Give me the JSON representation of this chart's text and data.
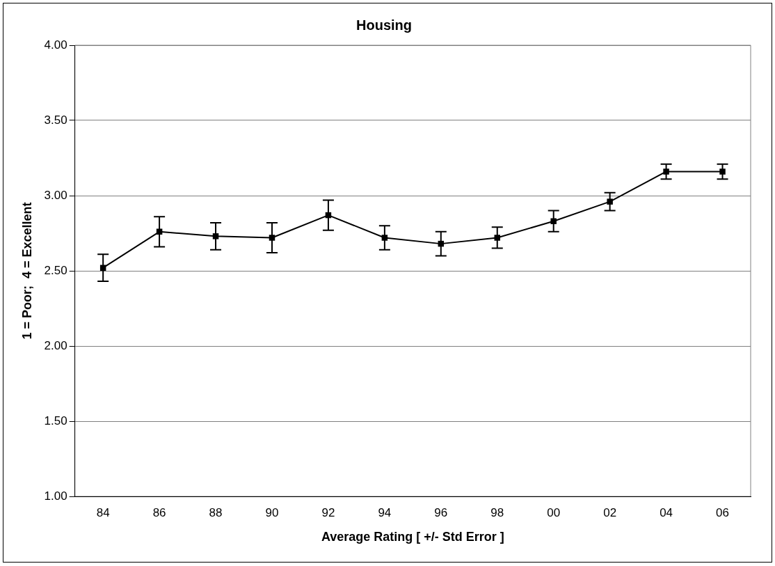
{
  "chart_data": {
    "type": "line",
    "title": "Housing",
    "xlabel": "Average Rating [ +/- Std Error ]",
    "ylabel": "1 = Poor;  4 = Excellent",
    "categories": [
      "84",
      "86",
      "88",
      "90",
      "92",
      "94",
      "96",
      "98",
      "00",
      "02",
      "04",
      "06"
    ],
    "series": [
      {
        "color": "#000000",
        "values": [
          2.52,
          2.76,
          2.73,
          2.72,
          2.87,
          2.72,
          2.68,
          2.72,
          2.83,
          2.96,
          3.16,
          3.16
        ],
        "errors": [
          0.09,
          0.1,
          0.09,
          0.1,
          0.1,
          0.08,
          0.08,
          0.07,
          0.07,
          0.06,
          0.05,
          0.05
        ]
      }
    ],
    "ylim": [
      1,
      4
    ],
    "yticks": [
      {
        "value": 1,
        "label": "1.00"
      },
      {
        "value": 1.5,
        "label": "1.50"
      },
      {
        "value": 2,
        "label": "2.00"
      },
      {
        "value": 2.5,
        "label": "2.50"
      },
      {
        "value": 3,
        "label": "3.00"
      },
      {
        "value": 3.5,
        "label": "3.50"
      },
      {
        "value": 4,
        "label": "4.00"
      }
    ],
    "grid": "y",
    "legend": false,
    "marker": "square",
    "line_style": "solid"
  }
}
